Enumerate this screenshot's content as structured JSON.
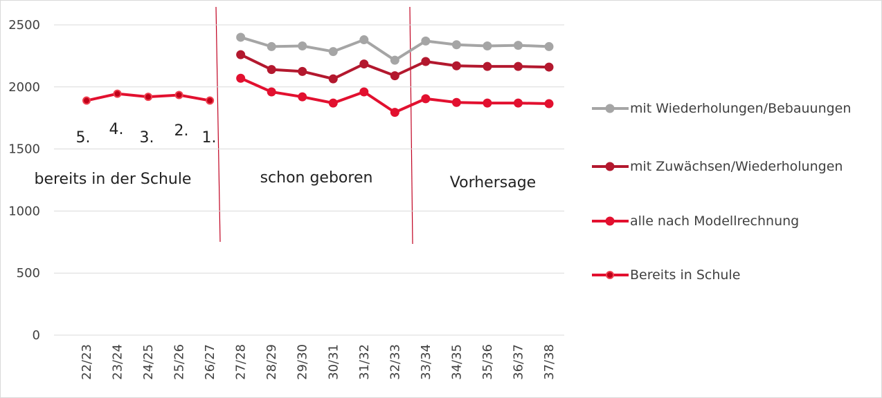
{
  "chart_data": {
    "type": "line",
    "categories": [
      "22/23",
      "23/24",
      "24/25",
      "25/26",
      "26/27",
      "27/28",
      "28/29",
      "29/30",
      "30/31",
      "31/32",
      "32/33",
      "33/34",
      "34/35",
      "35/36",
      "36/37",
      "37/38"
    ],
    "series": [
      {
        "name": "mit Wiederholungen/Bebauungen",
        "color": "#a5a5a5",
        "values": [
          null,
          null,
          null,
          null,
          null,
          2400,
          2325,
          2330,
          2285,
          2380,
          2215,
          2370,
          2340,
          2330,
          2335,
          2325
        ]
      },
      {
        "name": "mit Zuwächsen/Wiederholungen",
        "color": "#b3182e",
        "values": [
          null,
          null,
          null,
          null,
          null,
          2260,
          2140,
          2125,
          2065,
          2185,
          2090,
          2205,
          2170,
          2165,
          2165,
          2160
        ]
      },
      {
        "name": "alle nach Modellrechnung",
        "color": "#e2102f",
        "values": [
          null,
          null,
          null,
          null,
          null,
          2070,
          1960,
          1920,
          1870,
          1960,
          1795,
          1905,
          1875,
          1870,
          1870,
          1865
        ]
      },
      {
        "name": "Bereits in Schule",
        "color": "#e2102f",
        "values": [
          1890,
          1945,
          1920,
          1935,
          1890,
          null,
          null,
          null,
          null,
          null,
          null,
          null,
          null,
          null,
          null,
          null
        ]
      }
    ],
    "ylim": [
      0,
      2500
    ],
    "yticks": [
      0,
      500,
      1000,
      1500,
      2000,
      2500
    ],
    "grid": true,
    "annotations": [
      "5.",
      "4.",
      "3.",
      "2.",
      "1.",
      "bereits in der Schule",
      "schon geboren",
      "Vorhersage"
    ]
  }
}
